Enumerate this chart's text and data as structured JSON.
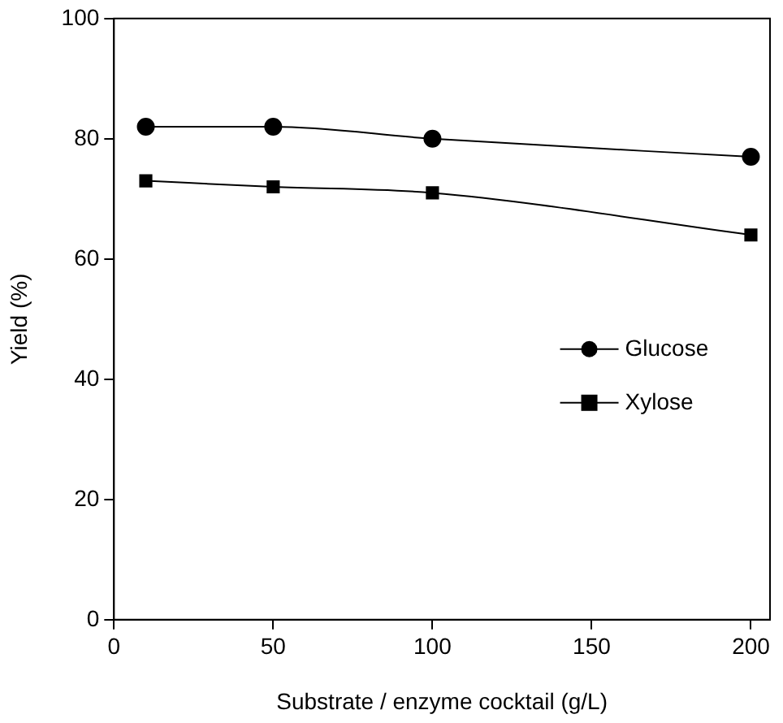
{
  "chart_data": {
    "type": "line",
    "xlabel": "Substrate / enzyme cocktail (g/L)",
    "ylabel": "Yield (%)",
    "x": [
      10,
      50,
      100,
      200
    ],
    "series": [
      {
        "name": "Glucose",
        "color": "#000000",
        "marker": "circle",
        "values": [
          82,
          82,
          80,
          77
        ]
      },
      {
        "name": "Xylose",
        "color": "#000000",
        "marker": "square",
        "values": [
          73,
          72,
          71,
          64
        ]
      }
    ],
    "xlim": [
      0,
      206
    ],
    "xticks": [
      0,
      50,
      100,
      150,
      200
    ],
    "ylim": [
      0,
      100
    ],
    "yticks": [
      0,
      20,
      40,
      60,
      80,
      100
    ],
    "grid": false,
    "legend": "right",
    "line_style": "solid"
  }
}
